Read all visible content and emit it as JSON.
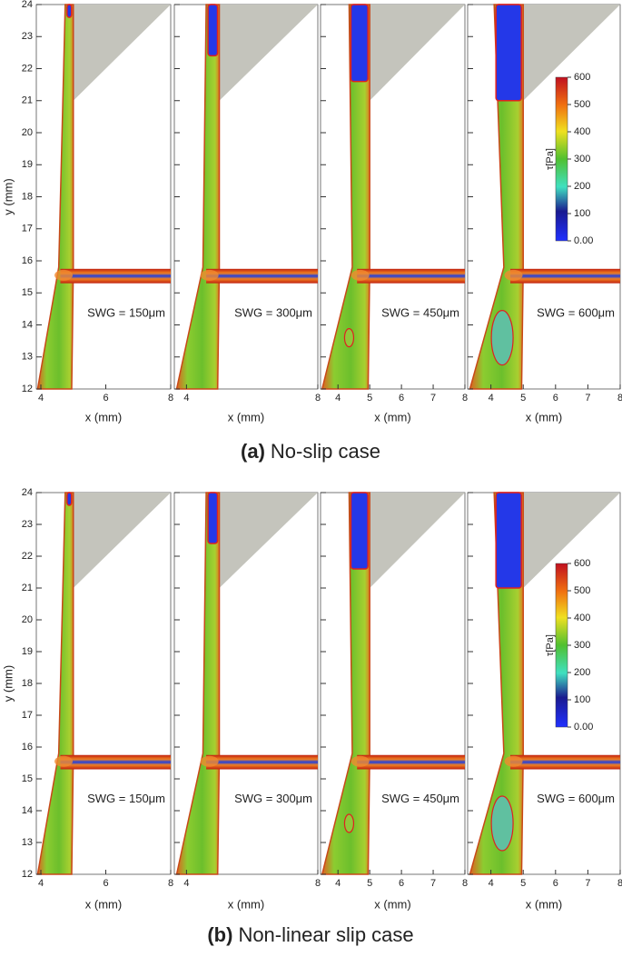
{
  "rows": [
    {
      "caption_tag": "(a)",
      "caption": "No-slip case",
      "y_label": "y (mm)",
      "x_label": "x (mm)",
      "ylim": [
        12,
        24
      ],
      "yticks": [
        12,
        13,
        14,
        15,
        16,
        17,
        18,
        19,
        20,
        21,
        22,
        23,
        24
      ],
      "panels": [
        {
          "label": "SWG = 150μm",
          "xlim": [
            3.86,
            8
          ],
          "xticks": [
            4,
            6,
            8
          ]
        },
        {
          "label": "SWG = 300μm",
          "xlim": [
            3.63,
            8
          ],
          "xticks": [
            4,
            8
          ]
        },
        {
          "label": "SWG = 450μm",
          "xlim": [
            3.45,
            8
          ],
          "xticks": [
            4,
            5,
            6,
            7,
            8
          ]
        },
        {
          "label": "SWG = 600μm",
          "xlim": [
            3.28,
            8
          ],
          "xticks": [
            4,
            5,
            6,
            7,
            8
          ]
        }
      ],
      "colorbar": {
        "title": "τ[Pa]",
        "lim": [
          0,
          600
        ],
        "ticks": [
          {
            "value": 0,
            "label": "0.00"
          },
          100,
          200,
          300,
          400,
          500,
          600
        ]
      }
    },
    {
      "caption_tag": "(b)",
      "caption": "Non-linear slip case",
      "y_label": "y (mm)",
      "x_label": "x (mm)",
      "ylim": [
        12,
        24
      ],
      "yticks": [
        12,
        13,
        14,
        15,
        16,
        17,
        18,
        19,
        20,
        21,
        22,
        23,
        24
      ],
      "panels": [
        {
          "label": "SWG = 150μm",
          "xlim": [
            3.86,
            8
          ],
          "xticks": [
            4,
            6,
            8
          ]
        },
        {
          "label": "SWG = 300μm",
          "xlim": [
            3.63,
            8
          ],
          "xticks": [
            4,
            8
          ]
        },
        {
          "label": "SWG = 450μm",
          "xlim": [
            3.45,
            8
          ],
          "xticks": [
            4,
            5,
            6,
            7,
            8
          ]
        },
        {
          "label": "SWG = 600μm",
          "xlim": [
            3.28,
            8
          ],
          "xticks": [
            4,
            5,
            6,
            7,
            8
          ]
        }
      ],
      "colorbar": {
        "title": "τ[Pa]",
        "lim": [
          0,
          600
        ],
        "ticks": [
          {
            "value": 0,
            "label": "0.00"
          },
          100,
          200,
          300,
          400,
          500,
          600
        ]
      }
    }
  ]
}
